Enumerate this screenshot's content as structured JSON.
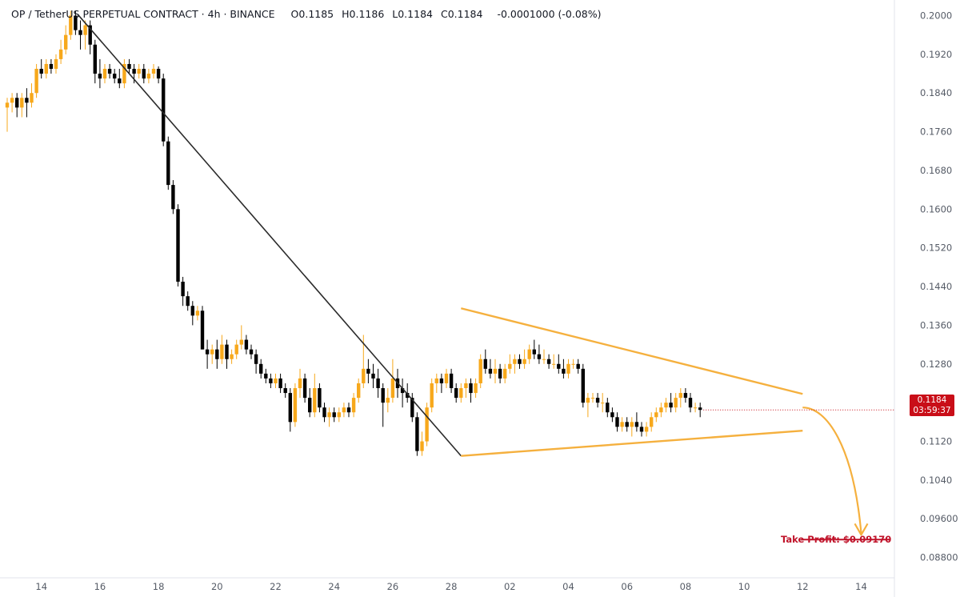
{
  "header": {
    "symbol": "OP / TetherUS PERPETUAL CONTRACT · 4h · BINANCE",
    "o_label": "O",
    "o_value": "0.1185",
    "h_label": "H",
    "h_value": "0.1186",
    "l_label": "L",
    "l_value": "0.1184",
    "c_label": "C",
    "c_value": "0.1184",
    "change": "-0.0001000 (-0.08%)"
  },
  "price_tag": {
    "price": "0.1184",
    "countdown": "03:59:37"
  },
  "take_profit": {
    "label": "Take Profit: $0.09170",
    "price": 0.0917
  },
  "colors": {
    "up": "#f7a81b",
    "down": "#000000",
    "trend": "#f5b03e",
    "tp": "#c0132a",
    "tag": "#c90e18"
  },
  "chart_data": {
    "type": "candlestick",
    "title": "OP / TetherUS PERPETUAL CONTRACT · 4h · BINANCE",
    "y_ticks": [
      "0.2000",
      "0.1920",
      "0.1840",
      "0.1760",
      "0.1680",
      "0.1600",
      "0.1520",
      "0.1440",
      "0.1360",
      "0.1280",
      "0.1200",
      "0.1120",
      "0.1040",
      "0.09600",
      "0.08800"
    ],
    "ylim": [
      0.0838,
      0.2024
    ],
    "x_ticks": [
      {
        "label": "14",
        "i": 7
      },
      {
        "label": "16",
        "i": 19
      },
      {
        "label": "18",
        "i": 31
      },
      {
        "label": "20",
        "i": 43
      },
      {
        "label": "22",
        "i": 55
      },
      {
        "label": "24",
        "i": 67
      },
      {
        "label": "26",
        "i": 79
      },
      {
        "label": "28",
        "i": 91
      },
      {
        "label": "02",
        "i": 103
      },
      {
        "label": "04",
        "i": 115
      },
      {
        "label": "06",
        "i": 127
      },
      {
        "label": "08",
        "i": 139
      },
      {
        "label": "10",
        "i": 151
      },
      {
        "label": "12",
        "i": 163
      },
      {
        "label": "14",
        "i": 175
      }
    ],
    "candles": [
      [
        0.181,
        0.183,
        0.176,
        0.182
      ],
      [
        0.182,
        0.184,
        0.18,
        0.183
      ],
      [
        0.183,
        0.184,
        0.179,
        0.181
      ],
      [
        0.181,
        0.184,
        0.179,
        0.183
      ],
      [
        0.183,
        0.185,
        0.179,
        0.182
      ],
      [
        0.182,
        0.186,
        0.181,
        0.184
      ],
      [
        0.184,
        0.19,
        0.183,
        0.189
      ],
      [
        0.189,
        0.191,
        0.187,
        0.188
      ],
      [
        0.188,
        0.191,
        0.187,
        0.19
      ],
      [
        0.19,
        0.191,
        0.188,
        0.189
      ],
      [
        0.189,
        0.192,
        0.188,
        0.191
      ],
      [
        0.191,
        0.195,
        0.19,
        0.193
      ],
      [
        0.193,
        0.198,
        0.192,
        0.196
      ],
      [
        0.196,
        0.201,
        0.195,
        0.2
      ],
      [
        0.2,
        0.201,
        0.196,
        0.197
      ],
      [
        0.197,
        0.199,
        0.193,
        0.196
      ],
      [
        0.196,
        0.199,
        0.193,
        0.198
      ],
      [
        0.198,
        0.199,
        0.192,
        0.194
      ],
      [
        0.194,
        0.195,
        0.186,
        0.188
      ],
      [
        0.188,
        0.191,
        0.185,
        0.187
      ],
      [
        0.187,
        0.19,
        0.186,
        0.189
      ],
      [
        0.189,
        0.19,
        0.187,
        0.188
      ],
      [
        0.188,
        0.189,
        0.186,
        0.187
      ],
      [
        0.187,
        0.189,
        0.185,
        0.186
      ],
      [
        0.186,
        0.191,
        0.185,
        0.19
      ],
      [
        0.19,
        0.191,
        0.188,
        0.189
      ],
      [
        0.189,
        0.19,
        0.186,
        0.188
      ],
      [
        0.188,
        0.19,
        0.187,
        0.189
      ],
      [
        0.189,
        0.19,
        0.186,
        0.187
      ],
      [
        0.187,
        0.189,
        0.186,
        0.188
      ],
      [
        0.188,
        0.19,
        0.187,
        0.189
      ],
      [
        0.189,
        0.1895,
        0.186,
        0.187
      ],
      [
        0.187,
        0.188,
        0.173,
        0.174
      ],
      [
        0.174,
        0.175,
        0.164,
        0.165
      ],
      [
        0.165,
        0.166,
        0.159,
        0.16
      ],
      [
        0.16,
        0.161,
        0.144,
        0.145
      ],
      [
        0.145,
        0.146,
        0.14,
        0.142
      ],
      [
        0.142,
        0.143,
        0.139,
        0.14
      ],
      [
        0.14,
        0.141,
        0.136,
        0.138
      ],
      [
        0.138,
        0.14,
        0.137,
        0.139
      ],
      [
        0.139,
        0.14,
        0.131,
        0.131
      ],
      [
        0.131,
        0.133,
        0.127,
        0.13
      ],
      [
        0.13,
        0.132,
        0.128,
        0.131
      ],
      [
        0.131,
        0.133,
        0.127,
        0.129
      ],
      [
        0.129,
        0.134,
        0.128,
        0.132
      ],
      [
        0.132,
        0.133,
        0.127,
        0.129
      ],
      [
        0.129,
        0.131,
        0.128,
        0.13
      ],
      [
        0.13,
        0.133,
        0.129,
        0.132
      ],
      [
        0.132,
        0.136,
        0.131,
        0.133
      ],
      [
        0.133,
        0.134,
        0.13,
        0.131
      ],
      [
        0.131,
        0.132,
        0.129,
        0.13
      ],
      [
        0.13,
        0.131,
        0.126,
        0.128
      ],
      [
        0.128,
        0.129,
        0.125,
        0.126
      ],
      [
        0.126,
        0.127,
        0.124,
        0.125
      ],
      [
        0.125,
        0.126,
        0.123,
        0.124
      ],
      [
        0.124,
        0.126,
        0.123,
        0.125
      ],
      [
        0.125,
        0.126,
        0.122,
        0.123
      ],
      [
        0.123,
        0.124,
        0.121,
        0.122
      ],
      [
        0.122,
        0.123,
        0.114,
        0.116
      ],
      [
        0.116,
        0.124,
        0.115,
        0.123
      ],
      [
        0.123,
        0.127,
        0.121,
        0.125
      ],
      [
        0.125,
        0.126,
        0.12,
        0.121
      ],
      [
        0.121,
        0.123,
        0.117,
        0.118
      ],
      [
        0.118,
        0.126,
        0.117,
        0.123
      ],
      [
        0.123,
        0.124,
        0.118,
        0.119
      ],
      [
        0.119,
        0.12,
        0.116,
        0.117
      ],
      [
        0.117,
        0.119,
        0.115,
        0.118
      ],
      [
        0.118,
        0.119,
        0.116,
        0.117
      ],
      [
        0.117,
        0.119,
        0.116,
        0.118
      ],
      [
        0.118,
        0.12,
        0.117,
        0.119
      ],
      [
        0.119,
        0.12,
        0.117,
        0.118
      ],
      [
        0.118,
        0.122,
        0.117,
        0.121
      ],
      [
        0.121,
        0.125,
        0.12,
        0.124
      ],
      [
        0.124,
        0.134,
        0.123,
        0.127
      ],
      [
        0.127,
        0.129,
        0.124,
        0.126
      ],
      [
        0.126,
        0.128,
        0.123,
        0.125
      ],
      [
        0.125,
        0.127,
        0.121,
        0.123
      ],
      [
        0.123,
        0.124,
        0.115,
        0.12
      ],
      [
        0.12,
        0.123,
        0.118,
        0.121
      ],
      [
        0.121,
        0.129,
        0.12,
        0.125
      ],
      [
        0.125,
        0.127,
        0.121,
        0.123
      ],
      [
        0.123,
        0.125,
        0.119,
        0.122
      ],
      [
        0.122,
        0.124,
        0.12,
        0.121
      ],
      [
        0.121,
        0.122,
        0.116,
        0.117
      ],
      [
        0.117,
        0.118,
        0.109,
        0.11
      ],
      [
        0.11,
        0.114,
        0.109,
        0.112
      ],
      [
        0.112,
        0.12,
        0.111,
        0.119
      ],
      [
        0.119,
        0.125,
        0.118,
        0.124
      ],
      [
        0.124,
        0.126,
        0.122,
        0.125
      ],
      [
        0.125,
        0.126,
        0.122,
        0.124
      ],
      [
        0.124,
        0.127,
        0.123,
        0.126
      ],
      [
        0.126,
        0.127,
        0.122,
        0.123
      ],
      [
        0.123,
        0.124,
        0.12,
        0.121
      ],
      [
        0.121,
        0.124,
        0.12,
        0.123
      ],
      [
        0.123,
        0.125,
        0.121,
        0.124
      ],
      [
        0.124,
        0.125,
        0.12,
        0.122
      ],
      [
        0.122,
        0.125,
        0.121,
        0.124
      ],
      [
        0.124,
        0.13,
        0.123,
        0.129
      ],
      [
        0.129,
        0.131,
        0.126,
        0.127
      ],
      [
        0.127,
        0.129,
        0.125,
        0.126
      ],
      [
        0.126,
        0.129,
        0.124,
        0.127
      ],
      [
        0.127,
        0.128,
        0.124,
        0.125
      ],
      [
        0.125,
        0.128,
        0.124,
        0.127
      ],
      [
        0.127,
        0.13,
        0.126,
        0.128
      ],
      [
        0.128,
        0.13,
        0.126,
        0.129
      ],
      [
        0.129,
        0.13,
        0.127,
        0.128
      ],
      [
        0.128,
        0.131,
        0.127,
        0.129
      ],
      [
        0.129,
        0.132,
        0.128,
        0.131
      ],
      [
        0.131,
        0.133,
        0.129,
        0.13
      ],
      [
        0.13,
        0.132,
        0.128,
        0.129
      ],
      [
        0.129,
        0.131,
        0.128,
        0.129
      ],
      [
        0.129,
        0.13,
        0.127,
        0.128
      ],
      [
        0.128,
        0.13,
        0.127,
        0.128
      ],
      [
        0.128,
        0.13,
        0.126,
        0.127
      ],
      [
        0.127,
        0.129,
        0.125,
        0.126
      ],
      [
        0.126,
        0.129,
        0.125,
        0.128
      ],
      [
        0.128,
        0.129,
        0.127,
        0.128
      ],
      [
        0.128,
        0.129,
        0.126,
        0.127
      ],
      [
        0.127,
        0.128,
        0.119,
        0.12
      ],
      [
        0.12,
        0.122,
        0.117,
        0.121
      ],
      [
        0.121,
        0.122,
        0.12,
        0.121
      ],
      [
        0.121,
        0.122,
        0.119,
        0.12
      ],
      [
        0.12,
        0.122,
        0.118,
        0.12
      ],
      [
        0.12,
        0.121,
        0.117,
        0.118
      ],
      [
        0.118,
        0.119,
        0.116,
        0.117
      ],
      [
        0.117,
        0.118,
        0.114,
        0.115
      ],
      [
        0.115,
        0.117,
        0.114,
        0.116
      ],
      [
        0.116,
        0.117,
        0.114,
        0.115
      ],
      [
        0.115,
        0.117,
        0.113,
        0.116
      ],
      [
        0.116,
        0.118,
        0.114,
        0.115
      ],
      [
        0.115,
        0.116,
        0.113,
        0.114
      ],
      [
        0.114,
        0.116,
        0.113,
        0.115
      ],
      [
        0.115,
        0.118,
        0.114,
        0.117
      ],
      [
        0.117,
        0.119,
        0.116,
        0.118
      ],
      [
        0.118,
        0.12,
        0.117,
        0.119
      ],
      [
        0.119,
        0.121,
        0.118,
        0.12
      ],
      [
        0.12,
        0.122,
        0.118,
        0.119
      ],
      [
        0.119,
        0.122,
        0.118,
        0.121
      ],
      [
        0.121,
        0.123,
        0.119,
        0.122
      ],
      [
        0.122,
        0.123,
        0.12,
        0.121
      ],
      [
        0.121,
        0.122,
        0.118,
        0.119
      ],
      [
        0.119,
        0.12,
        0.118,
        0.119
      ],
      [
        0.119,
        0.12,
        0.117,
        0.1185
      ]
    ],
    "annotations": {
      "downtrend_line": [
        [
          14.5,
          0.2002
        ],
        [
          93,
          0.109
        ]
      ],
      "upper_trendline": [
        [
          93,
          0.1395
        ],
        [
          163,
          0.1218
        ]
      ],
      "lower_trendline": [
        [
          93,
          0.109
        ],
        [
          163,
          0.1142
        ]
      ],
      "projection_arrow": {
        "from": [
          163,
          0.119
        ],
        "to": [
          175,
          0.093
        ]
      },
      "take_profit_line": {
        "x1": 163,
        "x2": 181,
        "y": 0.0917
      }
    }
  }
}
